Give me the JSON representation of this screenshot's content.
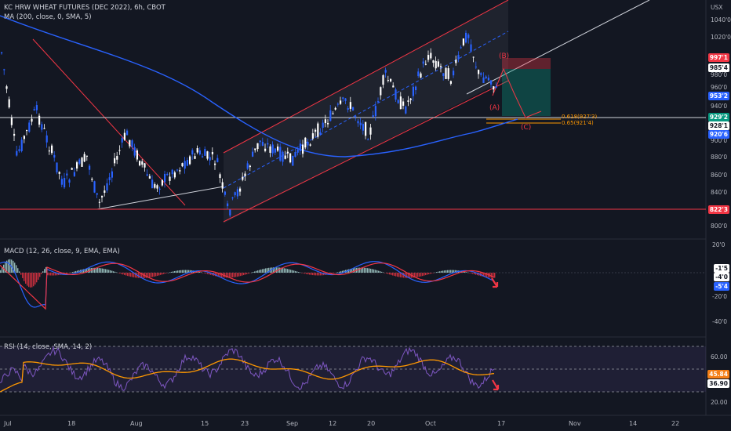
{
  "header": {
    "title": "KC HRW WHEAT FUTURES (DEC 2022), 6h, CBOT",
    "ma_legend": "MA (200, close, 0, SMA, 5)",
    "currency": "USX"
  },
  "price_axis": {
    "ticks": [
      "1040'0",
      "1020'0",
      "980'0",
      "960'0",
      "940'0",
      "900'0",
      "880'0",
      "860'0",
      "840'0",
      "800'0"
    ]
  },
  "price_tags": [
    {
      "name": "price-tag-997",
      "text": "997'1",
      "bg": "#f23645",
      "fg": "#ffffff"
    },
    {
      "name": "price-tag-985",
      "text": "985'4",
      "bg": "#ffffff",
      "fg": "#131722"
    },
    {
      "name": "price-tag-953",
      "text": "953'2",
      "bg": "#2962ff",
      "fg": "#ffffff"
    },
    {
      "name": "price-tag-929",
      "text": "929'2",
      "bg": "#089981",
      "fg": "#ffffff"
    },
    {
      "name": "price-tag-928",
      "text": "928'1",
      "bg": "#ffffff",
      "fg": "#131722"
    },
    {
      "name": "price-tag-920",
      "text": "920'6",
      "bg": "#2962ff",
      "fg": "#ffffff"
    },
    {
      "name": "price-tag-822",
      "text": "822'3",
      "bg": "#f23645",
      "fg": "#ffffff"
    }
  ],
  "annotations": {
    "wave_b": "(B)",
    "wave_a": "(A)",
    "wave_c": "(C)",
    "fib_618": "0.618(927'3)",
    "fib_65": "0.65(921'4)"
  },
  "macd": {
    "legend": "MACD (12, 26, close, 9, EMA, EMA)",
    "ticks": [
      "20'0",
      "-20'0",
      "-40'0"
    ],
    "tags": [
      {
        "name": "macd-tag-15",
        "text": "-1'5",
        "bg": "#ffffff",
        "fg": "#131722"
      },
      {
        "name": "macd-tag-40",
        "text": "-4'0",
        "bg": "#ffffff",
        "fg": "#131722"
      },
      {
        "name": "macd-tag-54",
        "text": "-5'4",
        "bg": "#2962ff",
        "fg": "#ffffff"
      }
    ]
  },
  "rsi": {
    "legend": "RSI (14, close, SMA, 14, 2)",
    "ticks": [
      "60.00",
      "20.00"
    ],
    "tags": [
      {
        "name": "rsi-tag-4584",
        "text": "45.84",
        "bg": "#f57f17",
        "fg": "#ffffff"
      },
      {
        "name": "rsi-tag-3690",
        "text": "36.90",
        "bg": "#ffffff",
        "fg": "#131722"
      }
    ]
  },
  "time_axis": {
    "labels": [
      "Jul",
      "18",
      "Aug",
      "15",
      "23",
      "Sep",
      "12",
      "20",
      "Oct",
      "17",
      "Nov",
      "14",
      "22"
    ]
  },
  "colors": {
    "background": "#131722",
    "up": "#ffffff",
    "down": "#2962ff",
    "channel": "#f23645",
    "ma": "#2962ff",
    "rsi_signal": "#ff9800",
    "rsi_line": "#7e57c2"
  }
}
